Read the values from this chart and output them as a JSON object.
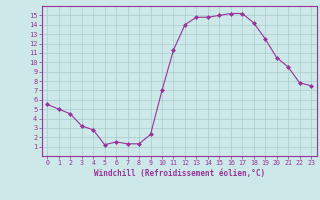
{
  "x": [
    0,
    1,
    2,
    3,
    4,
    5,
    6,
    7,
    8,
    9,
    10,
    11,
    12,
    13,
    14,
    15,
    16,
    17,
    18,
    19,
    20,
    21,
    22,
    23
  ],
  "y": [
    5.5,
    5.0,
    4.5,
    3.2,
    2.8,
    1.2,
    1.5,
    1.3,
    1.3,
    2.3,
    7.0,
    11.3,
    14.0,
    14.8,
    14.8,
    15.0,
    15.2,
    15.2,
    14.2,
    12.5,
    10.5,
    9.5,
    7.8,
    7.5
  ],
  "line_color": "#993399",
  "marker": "D",
  "marker_size": 2,
  "background_color": "#cce8e8",
  "grid_color": "#b0d4d4",
  "xlabel": "Windchill (Refroidissement éolien,°C)",
  "xlabel_color": "#993399",
  "tick_color": "#993399",
  "axis_color": "#993399",
  "ylim": [
    0,
    16
  ],
  "xlim": [
    -0.5,
    23.5
  ],
  "yticks": [
    1,
    2,
    3,
    4,
    5,
    6,
    7,
    8,
    9,
    10,
    11,
    12,
    13,
    14,
    15
  ],
  "xticks": [
    0,
    1,
    2,
    3,
    4,
    5,
    6,
    7,
    8,
    9,
    10,
    11,
    12,
    13,
    14,
    15,
    16,
    17,
    18,
    19,
    20,
    21,
    22,
    23
  ],
  "line_width": 0.8
}
